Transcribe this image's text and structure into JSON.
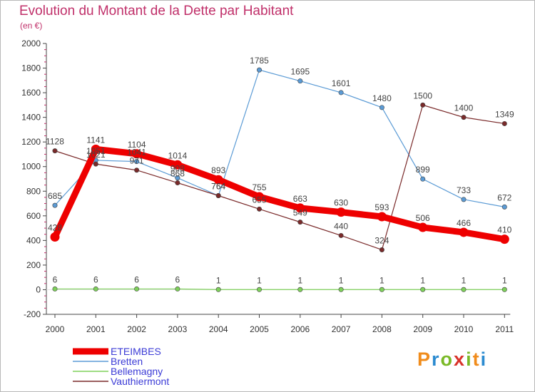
{
  "title": "Evolution du Montant de la Dette par Habitant",
  "subtitle": "(en €)",
  "logo": {
    "chars": [
      "P",
      "r",
      "o",
      "x",
      "i",
      "t",
      "i"
    ],
    "colors": [
      "#f08c1c",
      "#2c8bd0",
      "#7ab927",
      "#d9322a",
      "#7ab927",
      "#f08c1c",
      "#2c8bd0"
    ]
  },
  "chart_data": {
    "type": "line",
    "title": "Evolution du Montant de la Dette par Habitant",
    "subtitle": "(en €)",
    "xlabel": "",
    "ylabel": "",
    "categories": [
      "2000",
      "2001",
      "2002",
      "2003",
      "2004",
      "2005",
      "2006",
      "2007",
      "2008",
      "2009",
      "2010",
      "2011"
    ],
    "ylim": [
      -200,
      2000
    ],
    "yticks": [
      -200,
      0,
      200,
      400,
      600,
      800,
      1000,
      1200,
      1400,
      1600,
      1800,
      2000
    ],
    "grid": false,
    "legend_position": "bottom-left",
    "series": [
      {
        "name": "ETEIMBES",
        "color": "#ee0000",
        "values": [
          428,
          1141,
          1104,
          1014,
          893,
          755,
          663,
          630,
          593,
          506,
          466,
          410
        ]
      },
      {
        "name": "Bretten",
        "color": "#5b9bd5",
        "values": [
          685,
          1051,
          1041,
          908,
          764,
          1785,
          1695,
          1601,
          1480,
          899,
          733,
          672
        ]
      },
      {
        "name": "Bellemagny",
        "color": "#7ed05a",
        "values": [
          6,
          6,
          6,
          6,
          1,
          1,
          1,
          1,
          1,
          1,
          1,
          1
        ]
      },
      {
        "name": "Vauthiermont",
        "color": "#7a2a2a",
        "values": [
          1128,
          1021,
          971,
          868,
          764,
          655,
          549,
          440,
          324,
          1500,
          1400,
          1349
        ]
      }
    ]
  }
}
